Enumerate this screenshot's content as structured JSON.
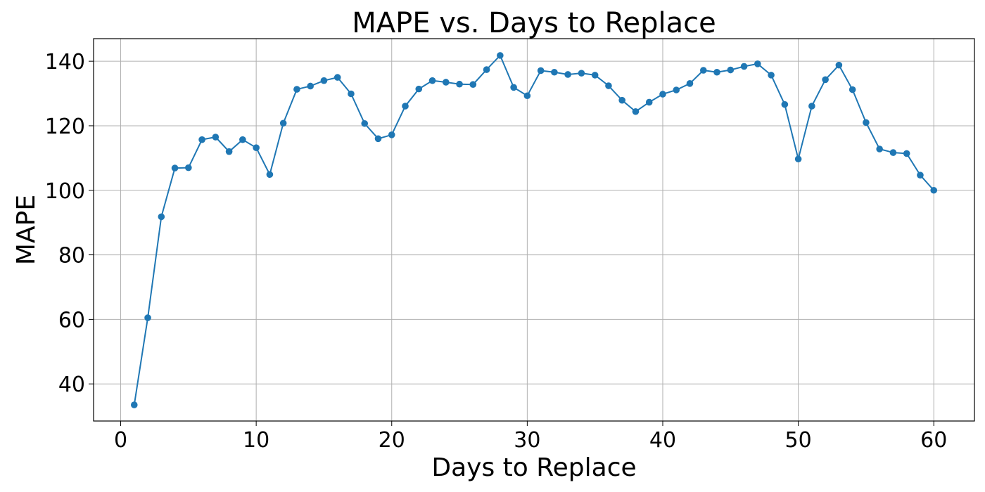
{
  "chart_data": {
    "type": "line",
    "title": "MAPE vs. Days to Replace",
    "xlabel": "Days to Replace",
    "ylabel": "MAPE",
    "xlim": [
      -2,
      63
    ],
    "ylim": [
      28.5,
      147
    ],
    "xticks": [
      0,
      10,
      20,
      30,
      40,
      50,
      60
    ],
    "yticks": [
      40,
      60,
      80,
      100,
      120,
      140
    ],
    "grid": true,
    "marker": "circle",
    "color": "#1f77b4",
    "series": [
      {
        "x": [
          1,
          2,
          3,
          4,
          5,
          6,
          7,
          8,
          9,
          10,
          11,
          12,
          13,
          14,
          15,
          16,
          17,
          18,
          19,
          20,
          21,
          22,
          23,
          24,
          25,
          26,
          27,
          28,
          29,
          30,
          31,
          32,
          33,
          34,
          35,
          36,
          37,
          38,
          39,
          40,
          41,
          42,
          43,
          44,
          45,
          46,
          47,
          48,
          49,
          50,
          51,
          52,
          53,
          54,
          55,
          56,
          57,
          58,
          59,
          60
        ],
        "values": [
          33.5,
          60.5,
          91.8,
          106.9,
          107.0,
          115.7,
          116.5,
          112.0,
          115.7,
          113.2,
          104.9,
          120.8,
          131.3,
          132.3,
          134.0,
          135.0,
          129.9,
          120.7,
          116.0,
          117.2,
          126.1,
          131.4,
          134.0,
          133.5,
          132.9,
          132.8,
          137.4,
          141.8,
          131.9,
          129.3,
          137.1,
          136.6,
          135.9,
          136.3,
          135.7,
          132.4,
          127.9,
          124.4,
          127.3,
          129.8,
          131.1,
          133.1,
          137.2,
          136.6,
          137.3,
          138.4,
          139.2,
          135.7,
          126.6,
          109.7,
          126.1,
          134.3,
          138.8,
          131.2,
          121.0,
          112.8,
          111.7,
          111.4,
          104.7,
          100.0
        ]
      }
    ]
  }
}
